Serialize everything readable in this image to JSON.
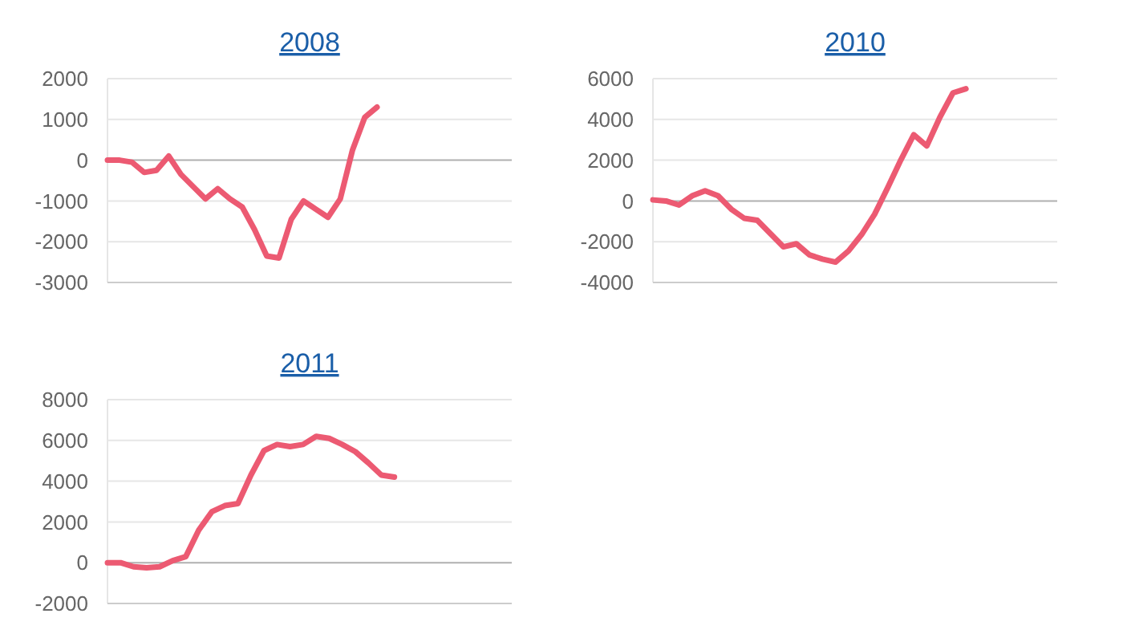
{
  "chart_data": [
    {
      "type": "line",
      "title": "2008",
      "categories": [
        null,
        null,
        null,
        null,
        null,
        null,
        null,
        null,
        null,
        null,
        null,
        null,
        null,
        null,
        null,
        null,
        null,
        null,
        null,
        null,
        null,
        null,
        null,
        null,
        null,
        null,
        null,
        null,
        null,
        null,
        null,
        null,
        null,
        null
      ],
      "series": [
        {
          "color": "#ec5a72",
          "values": [
            0,
            0,
            -50,
            -300,
            -250,
            100,
            -350,
            -650,
            -950,
            -700,
            -950,
            -1150,
            -1700,
            -2350,
            -2400,
            -1450,
            -1000,
            -1200,
            -1400,
            -950,
            250,
            1050,
            1300,
            null,
            null,
            null,
            null,
            null,
            null,
            null,
            null,
            null,
            null,
            null
          ]
        }
      ],
      "ylim": [
        -3000,
        2000
      ],
      "yticks": [
        -3000,
        -2000,
        -1000,
        0,
        1000,
        2000
      ],
      "grid": "y",
      "tick_labels": "y"
    },
    {
      "type": "line",
      "title": "2010",
      "categories": [
        null,
        null,
        null,
        null,
        null,
        null,
        null,
        null,
        null,
        null,
        null,
        null,
        null,
        null,
        null,
        null,
        null,
        null,
        null,
        null,
        null,
        null,
        null,
        null,
        null,
        null,
        null,
        null,
        null,
        null,
        null,
        null
      ],
      "series": [
        {
          "color": "#ec5a72",
          "values": [
            50,
            0,
            -200,
            250,
            500,
            250,
            -400,
            -850,
            -950,
            -1600,
            -2250,
            -2100,
            -2650,
            -2850,
            -3000,
            -2450,
            -1650,
            -650,
            650,
            2000,
            3250,
            2700,
            4100,
            5300,
            5500,
            null,
            null,
            null,
            null,
            null,
            null,
            null
          ]
        }
      ],
      "ylim": [
        -4000,
        6000
      ],
      "yticks": [
        -4000,
        -2000,
        0,
        2000,
        4000,
        6000
      ],
      "grid": "y",
      "tick_labels": "y"
    },
    {
      "type": "line",
      "title": "2011",
      "categories": [
        null,
        null,
        null,
        null,
        null,
        null,
        null,
        null,
        null,
        null,
        null,
        null,
        null,
        null,
        null,
        null,
        null,
        null,
        null,
        null,
        null,
        null,
        null,
        null,
        null,
        null,
        null,
        null,
        null,
        null,
        null,
        null
      ],
      "series": [
        {
          "color": "#ec5a72",
          "values": [
            0,
            0,
            -200,
            -250,
            -200,
            100,
            300,
            1600,
            2500,
            2800,
            2900,
            4300,
            5500,
            5800,
            5700,
            5800,
            6200,
            6100,
            5800,
            5450,
            4900,
            4300,
            4200,
            null,
            null,
            null,
            null,
            null,
            null,
            null,
            null,
            null
          ]
        }
      ],
      "ylim": [
        -2000,
        8000
      ],
      "yticks": [
        -2000,
        0,
        2000,
        4000,
        6000,
        8000
      ],
      "grid": "y",
      "tick_labels": "y"
    }
  ]
}
